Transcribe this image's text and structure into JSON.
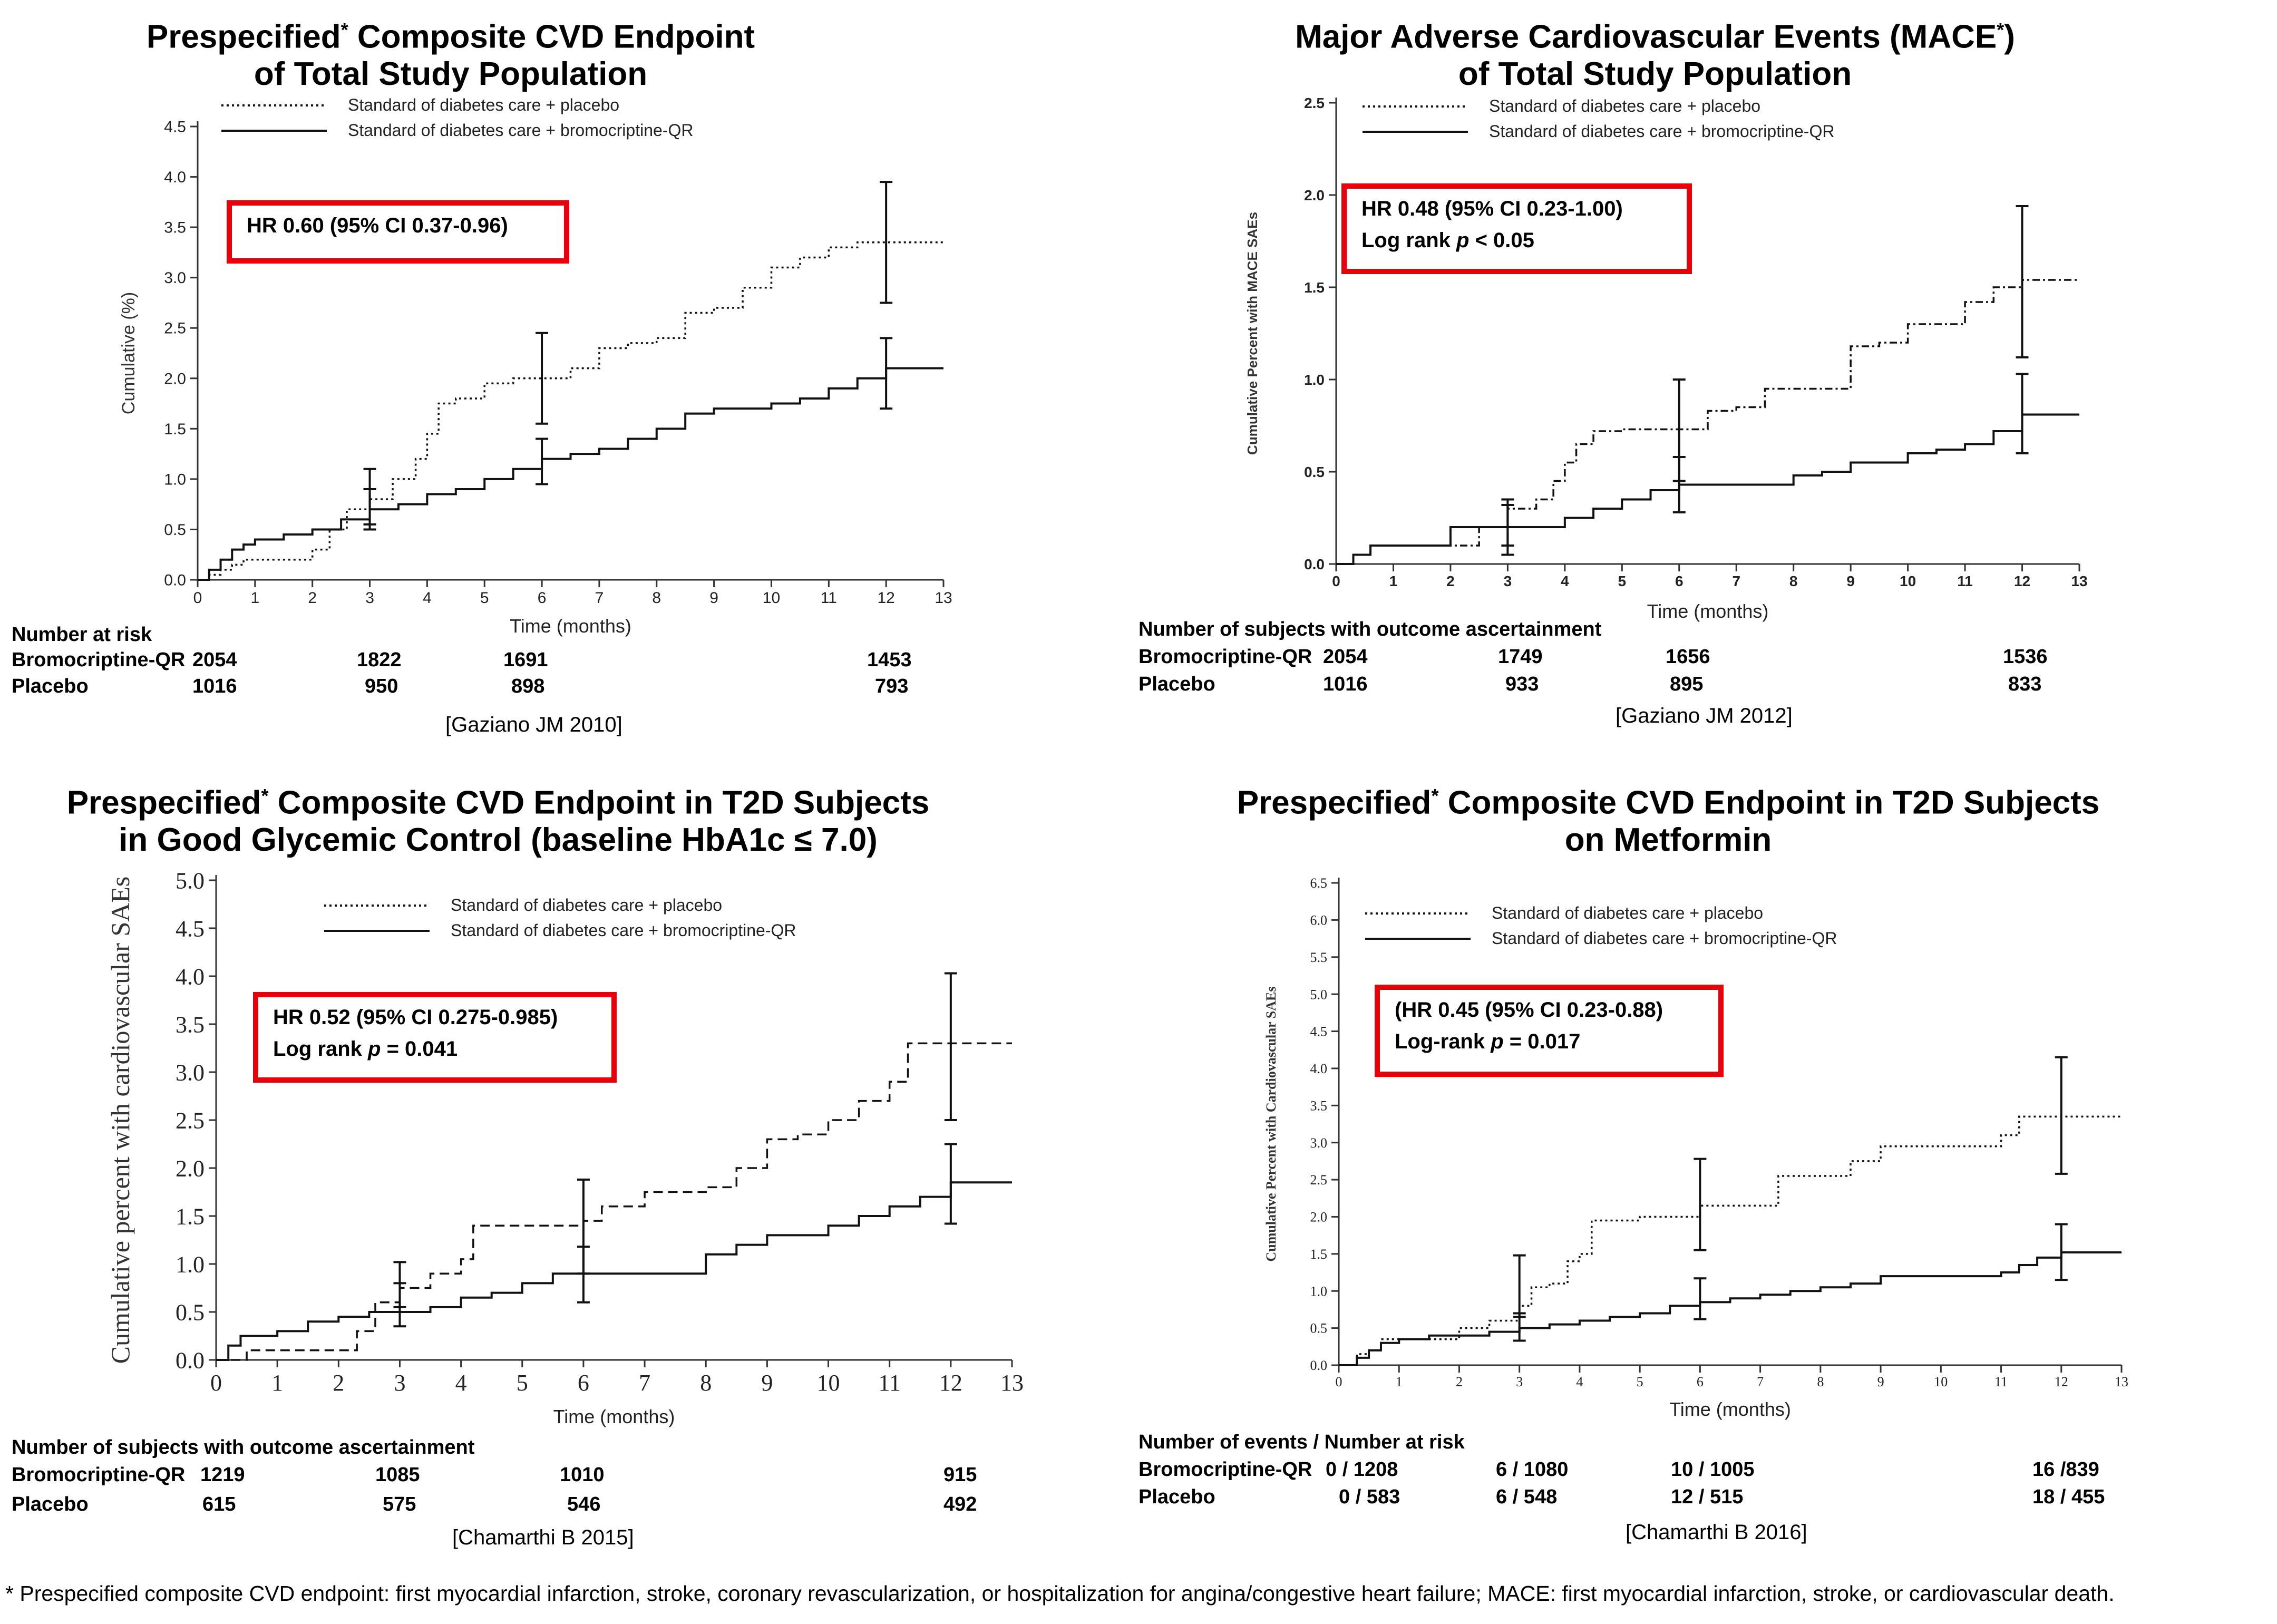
{
  "footnote": "* Prespecified composite CVD endpoint: first myocardial infarction, stroke, coronary revascularization, or hospitalization for angina/congestive heart failure; MACE: first myocardial infarction, stroke, or cardiovascular death.",
  "colors": {
    "box_border": "#e8000b",
    "line": "#000000",
    "axis": "#333333"
  },
  "panels": [
    {
      "title_line1": "Prespecified",
      "title_line1_rest": " Composite CVD Endpoint",
      "title_star": "*",
      "title_line2": "of Total Study Population",
      "legend_placebo": "Standard of diabetes care + placebo",
      "legend_bromo": "Standard of diabetes care + bromocriptine-QR",
      "hr_line1": "HR 0.60 (95% CI 0.37-0.96)",
      "hr_line2": "",
      "risk_header": "Number at risk",
      "risk_row1_label": "Bromocriptine-QR",
      "risk_row2_label": "Placebo",
      "risk_row1": [
        "2054",
        "1822",
        "1691",
        "1453"
      ],
      "risk_row2": [
        "1016",
        "950",
        "898",
        "793"
      ],
      "reference": "[Gaziano JM 2010]"
    },
    {
      "title_line1": "Major Adverse Cardiovascular Events (MACE",
      "title_star": "*",
      "title_line1_rest": ")",
      "title_line2": "of Total Study Population",
      "legend_placebo": "Standard of diabetes care + placebo",
      "legend_bromo": "Standard of diabetes care + bromocriptine-QR",
      "hr_line1": "HR 0.48 (95% CI 0.23-1.00)",
      "hr_line2_pre": "Log rank ",
      "hr_line2_p": "p",
      "hr_line2_post": " < 0.05",
      "risk_header": "Number of subjects with outcome ascertainment",
      "risk_row1_label": "Bromocriptine-QR",
      "risk_row2_label": "Placebo",
      "risk_row1": [
        "2054",
        "1749",
        "1656",
        "1536"
      ],
      "risk_row2": [
        "1016",
        "933",
        "895",
        "833"
      ],
      "reference": "[Gaziano JM 2012]"
    },
    {
      "title_line1": "Prespecified",
      "title_star": "*",
      "title_line1_rest": " Composite CVD Endpoint in T2D Subjects",
      "title_line2": "in Good Glycemic Control (baseline HbA1c ≤ 7.0)",
      "legend_placebo": "Standard of diabetes care + placebo",
      "legend_bromo": "Standard of diabetes care + bromocriptine-QR",
      "hr_line1": "HR 0.52 (95% CI 0.275-0.985)",
      "hr_line2_pre": "Log rank ",
      "hr_line2_p": "p",
      "hr_line2_post": " = 0.041",
      "risk_header": "Number of subjects with outcome ascertainment",
      "risk_row1_label": "Bromocriptine-QR",
      "risk_row2_label": "Placebo",
      "risk_row1": [
        "1219",
        "1085",
        "1010",
        "915"
      ],
      "risk_row2": [
        "615",
        "575",
        "546",
        "492"
      ],
      "reference": "[Chamarthi B 2015]"
    },
    {
      "title_line1": "Prespecified",
      "title_star": "*",
      "title_line1_rest": " Composite CVD Endpoint in T2D Subjects",
      "title_line2": "on Metformin",
      "legend_placebo": "Standard of diabetes care + placebo",
      "legend_bromo": "Standard of diabetes care + bromocriptine-QR",
      "hr_line1": "(HR 0.45 (95% CI 0.23-0.88)",
      "hr_line2_pre": "Log-rank ",
      "hr_line2_p": "p",
      "hr_line2_post": " =  0.017",
      "risk_header": "Number of events / Number at risk",
      "risk_row1_label": "Bromocriptine-QR",
      "risk_row2_label": "Placebo",
      "risk_row1": [
        "0 / 1208",
        "6 / 1080",
        "10 / 1005",
        "16 /839"
      ],
      "risk_row2": [
        "0 / 583",
        "6 / 548",
        "12 / 515",
        "18 / 455"
      ],
      "reference": "[Chamarthi B 2016]"
    }
  ],
  "chart_data": [
    {
      "type": "line",
      "title": "Prespecified* Composite CVD Endpoint of Total Study Population",
      "xlabel": "Time (months)",
      "ylabel": "Cumulative (%)",
      "xlim": [
        0,
        13
      ],
      "ylim": [
        0,
        4.5
      ],
      "xticks": [
        0,
        1,
        2,
        3,
        4,
        5,
        6,
        7,
        8,
        9,
        10,
        11,
        12,
        13
      ],
      "yticks": [
        0.0,
        0.5,
        1.0,
        1.5,
        2.0,
        2.5,
        3.0,
        3.5,
        4.0,
        4.5
      ],
      "ytick_labels": [
        "0.0",
        "0.5",
        "1.0",
        "1.5",
        "2.0",
        "2.5",
        "3.0",
        "3.5",
        "4.0",
        "4.5"
      ],
      "series": [
        {
          "name": "Standard of diabetes care + placebo",
          "style": "dotted",
          "x": [
            0,
            0.2,
            0.4,
            0.6,
            0.8,
            1,
            1.5,
            2,
            2.3,
            2.6,
            3,
            3.4,
            3.8,
            4.0,
            4.2,
            4.5,
            5,
            5.5,
            6,
            6.5,
            7,
            7.5,
            8,
            8.5,
            9,
            9.5,
            10,
            10.5,
            11,
            11.5,
            12,
            13
          ],
          "y": [
            0,
            0.05,
            0.1,
            0.15,
            0.2,
            0.2,
            0.2,
            0.3,
            0.5,
            0.7,
            0.8,
            1.0,
            1.2,
            1.45,
            1.75,
            1.8,
            1.95,
            2.0,
            2.0,
            2.1,
            2.3,
            2.35,
            2.4,
            2.65,
            2.7,
            2.9,
            3.1,
            3.2,
            3.3,
            3.35,
            3.35,
            3.35
          ]
        },
        {
          "name": "Standard of diabetes care + bromocriptine-QR",
          "style": "solid",
          "x": [
            0,
            0.2,
            0.4,
            0.6,
            0.8,
            1,
            1.5,
            2,
            2.5,
            3,
            3.5,
            4,
            4.5,
            5,
            5.5,
            6,
            6.5,
            7,
            7.5,
            8,
            8.5,
            9,
            9.5,
            10,
            10.5,
            11,
            11.5,
            12,
            13
          ],
          "y": [
            0,
            0.1,
            0.2,
            0.3,
            0.35,
            0.4,
            0.45,
            0.5,
            0.6,
            0.7,
            0.75,
            0.85,
            0.9,
            1.0,
            1.1,
            1.2,
            1.25,
            1.3,
            1.4,
            1.5,
            1.65,
            1.7,
            1.7,
            1.75,
            1.8,
            1.9,
            2.0,
            2.1,
            2.1
          ]
        }
      ],
      "error_bars": [
        {
          "series": 0,
          "x": 3,
          "low": 0.55,
          "high": 1.1
        },
        {
          "series": 1,
          "x": 3,
          "low": 0.5,
          "high": 0.9
        },
        {
          "series": 0,
          "x": 6,
          "low": 1.55,
          "high": 2.45
        },
        {
          "series": 1,
          "x": 6,
          "low": 0.95,
          "high": 1.4
        },
        {
          "series": 0,
          "x": 12,
          "low": 2.75,
          "high": 3.95
        },
        {
          "series": 1,
          "x": 12,
          "low": 1.7,
          "high": 2.4
        }
      ]
    },
    {
      "type": "line",
      "title": "Major Adverse Cardiovascular Events (MACE*) of Total Study Population",
      "xlabel": "Time (months)",
      "ylabel": "Cumulative Percent with MACE SAEs",
      "xlim": [
        0,
        13
      ],
      "ylim": [
        0,
        2.5
      ],
      "xticks": [
        0,
        1,
        2,
        3,
        4,
        5,
        6,
        7,
        8,
        9,
        10,
        11,
        12,
        13
      ],
      "yticks": [
        0.0,
        0.5,
        1.0,
        1.5,
        2.0,
        2.5
      ],
      "ytick_labels": [
        "0.0",
        "0.5",
        "1.0",
        "1.5",
        "2.0",
        "2.5"
      ],
      "series": [
        {
          "name": "Standard of diabetes care + placebo",
          "style": "dashdot",
          "x": [
            0,
            0.3,
            0.6,
            1,
            2,
            2.5,
            3,
            3.5,
            3.8,
            4,
            4.2,
            4.5,
            5,
            5.5,
            6,
            6.5,
            7,
            7.5,
            8,
            8.5,
            9,
            9.5,
            10,
            10.5,
            11,
            11.5,
            12,
            13
          ],
          "y": [
            0,
            0.05,
            0.1,
            0.1,
            0.1,
            0.2,
            0.3,
            0.35,
            0.45,
            0.55,
            0.65,
            0.72,
            0.73,
            0.73,
            0.73,
            0.83,
            0.85,
            0.95,
            0.95,
            0.95,
            1.18,
            1.2,
            1.3,
            1.3,
            1.42,
            1.5,
            1.54,
            1.54
          ]
        },
        {
          "name": "Standard of diabetes care + bromocriptine-QR",
          "style": "solid",
          "x": [
            0,
            0.3,
            0.6,
            1,
            2,
            2.5,
            3,
            4,
            4.5,
            5,
            5.5,
            6,
            6.5,
            7,
            8,
            8.5,
            9,
            10,
            10.5,
            11,
            11.5,
            12,
            13
          ],
          "y": [
            0,
            0.05,
            0.1,
            0.1,
            0.2,
            0.2,
            0.2,
            0.25,
            0.3,
            0.35,
            0.4,
            0.43,
            0.43,
            0.43,
            0.48,
            0.5,
            0.55,
            0.6,
            0.62,
            0.65,
            0.72,
            0.81,
            0.81
          ]
        }
      ],
      "error_bars": [
        {
          "series": 0,
          "x": 3,
          "low": 0.1,
          "high": 0.35
        },
        {
          "series": 1,
          "x": 3,
          "low": 0.05,
          "high": 0.32
        },
        {
          "series": 0,
          "x": 6,
          "low": 0.45,
          "high": 1.0
        },
        {
          "series": 1,
          "x": 6,
          "low": 0.28,
          "high": 0.58
        },
        {
          "series": 0,
          "x": 12,
          "low": 1.12,
          "high": 1.94
        },
        {
          "series": 1,
          "x": 12,
          "low": 0.6,
          "high": 1.03
        }
      ]
    },
    {
      "type": "line",
      "title": "Prespecified* Composite CVD Endpoint in T2D Subjects in Good Glycemic Control (baseline HbA1c ≤ 7.0)",
      "xlabel": "Time (months)",
      "ylabel": "Cumulative percent with cardiovascular SAEs",
      "xlim": [
        0,
        13
      ],
      "ylim": [
        0,
        5.0
      ],
      "xticks": [
        0,
        1,
        2,
        3,
        4,
        5,
        6,
        7,
        8,
        9,
        10,
        11,
        12,
        13
      ],
      "yticks": [
        0.0,
        0.5,
        1.0,
        1.5,
        2.0,
        2.5,
        3.0,
        3.5,
        4.0,
        4.5,
        5.0
      ],
      "ytick_labels": [
        "0.0",
        "0.5",
        "1.0",
        "1.5",
        "2.0",
        "2.5",
        "3.0",
        "3.5",
        "4.0",
        "4.5",
        "5.0"
      ],
      "series": [
        {
          "name": "Standard of diabetes care + placebo",
          "style": "dashed",
          "x": [
            0,
            0.3,
            0.5,
            1,
            1.5,
            2,
            2.3,
            2.6,
            3,
            3.5,
            4,
            4.2,
            5,
            6,
            6.3,
            7,
            8,
            8.5,
            9,
            9.5,
            10,
            10.5,
            11,
            11.3,
            12,
            13
          ],
          "y": [
            0,
            0,
            0.1,
            0.1,
            0.1,
            0.1,
            0.3,
            0.6,
            0.75,
            0.9,
            1.05,
            1.4,
            1.4,
            1.45,
            1.6,
            1.75,
            1.8,
            2.0,
            2.3,
            2.35,
            2.5,
            2.7,
            2.9,
            3.3,
            3.3,
            3.3
          ]
        },
        {
          "name": "Standard of diabetes care + bromocriptine-QR",
          "style": "solid",
          "x": [
            0,
            0.2,
            0.4,
            1,
            1.5,
            2,
            2.5,
            3,
            3.5,
            4,
            4.5,
            5,
            5.5,
            6,
            6.5,
            7,
            7.5,
            8,
            8.5,
            9,
            9.5,
            10,
            10.5,
            11,
            11.5,
            12,
            13
          ],
          "y": [
            0,
            0.15,
            0.25,
            0.3,
            0.4,
            0.45,
            0.5,
            0.5,
            0.55,
            0.65,
            0.7,
            0.8,
            0.9,
            0.9,
            0.9,
            0.9,
            0.9,
            1.1,
            1.2,
            1.3,
            1.3,
            1.4,
            1.5,
            1.6,
            1.7,
            1.85,
            1.85
          ]
        }
      ],
      "error_bars": [
        {
          "series": 0,
          "x": 3,
          "low": 0.55,
          "high": 1.02
        },
        {
          "series": 1,
          "x": 3,
          "low": 0.35,
          "high": 0.8
        },
        {
          "series": 0,
          "x": 6,
          "low": 0.9,
          "high": 1.88
        },
        {
          "series": 1,
          "x": 6,
          "low": 0.6,
          "high": 1.18
        },
        {
          "series": 0,
          "x": 12,
          "low": 2.5,
          "high": 4.03
        },
        {
          "series": 1,
          "x": 12,
          "low": 1.42,
          "high": 2.25
        }
      ]
    },
    {
      "type": "line",
      "title": "Prespecified* Composite CVD Endpoint in T2D Subjects on Metformin",
      "xlabel": "Time (months)",
      "ylabel": "Cumulative Percent with Cardiovascular SAEs",
      "xlim": [
        0,
        13
      ],
      "ylim": [
        0,
        6.5
      ],
      "xticks": [
        0,
        1,
        2,
        3,
        4,
        5,
        6,
        7,
        8,
        9,
        10,
        11,
        12,
        13
      ],
      "yticks": [
        0.0,
        0.5,
        1.0,
        1.5,
        2.0,
        2.5,
        3.0,
        3.5,
        4.0,
        4.5,
        5.0,
        5.5,
        6.0,
        6.5
      ],
      "ytick_labels": [
        "0.0",
        "0.5",
        "1.0",
        "1.5",
        "2.0",
        "2.5",
        "3.0",
        "3.5",
        "4.0",
        "4.5",
        "5.0",
        "5.5",
        "6.0",
        "6.5"
      ],
      "series": [
        {
          "name": "Standard of diabetes care + placebo",
          "style": "dotted",
          "x": [
            0,
            0.3,
            0.5,
            0.7,
            1,
            1.5,
            2,
            2.5,
            3,
            3.2,
            3.5,
            3.8,
            4,
            4.2,
            5,
            6,
            6.5,
            7,
            7.3,
            8,
            8.5,
            9,
            10,
            11,
            11.3,
            12,
            13
          ],
          "y": [
            0,
            0.15,
            0.2,
            0.35,
            0.35,
            0.35,
            0.5,
            0.6,
            0.8,
            1.05,
            1.1,
            1.4,
            1.5,
            1.95,
            2.0,
            2.15,
            2.15,
            2.15,
            2.55,
            2.55,
            2.75,
            2.95,
            2.95,
            3.1,
            3.35,
            3.35,
            3.35
          ]
        },
        {
          "name": "Standard of diabetes care + bromocriptine-QR",
          "style": "solid",
          "x": [
            0,
            0.3,
            0.5,
            0.7,
            1,
            1.5,
            2,
            2.5,
            3,
            3.5,
            4,
            4.5,
            5,
            5.5,
            6,
            6.5,
            7,
            7.5,
            8,
            8.5,
            9,
            10,
            11,
            11.3,
            11.6,
            12,
            13
          ],
          "y": [
            0,
            0.1,
            0.2,
            0.3,
            0.35,
            0.4,
            0.4,
            0.45,
            0.5,
            0.55,
            0.6,
            0.65,
            0.7,
            0.8,
            0.85,
            0.9,
            0.95,
            1.0,
            1.05,
            1.1,
            1.2,
            1.2,
            1.25,
            1.35,
            1.45,
            1.52,
            1.52
          ]
        }
      ],
      "error_bars": [
        {
          "series": 0,
          "x": 3,
          "low": 0.65,
          "high": 1.48
        },
        {
          "series": 1,
          "x": 3,
          "low": 0.33,
          "high": 0.7
        },
        {
          "series": 0,
          "x": 6,
          "low": 1.55,
          "high": 2.78
        },
        {
          "series": 1,
          "x": 6,
          "low": 0.62,
          "high": 1.17
        },
        {
          "series": 0,
          "x": 12,
          "low": 2.58,
          "high": 4.15
        },
        {
          "series": 1,
          "x": 12,
          "low": 1.15,
          "high": 1.9
        }
      ]
    }
  ]
}
